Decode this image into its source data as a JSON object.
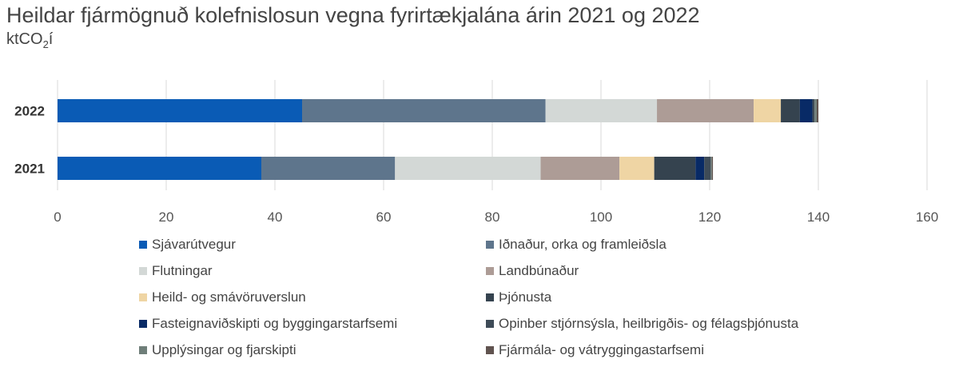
{
  "title": "Heildar fjármögnuð kolefnislosun vegna fyrirtækjalána árin 2021 og 2022",
  "subtitle": {
    "unit_main": "ktCO",
    "unit_sub": "2",
    "unit_tail": "í"
  },
  "chart_data": {
    "type": "bar",
    "orientation": "horizontal",
    "stacked": true,
    "categories": [
      "2022",
      "2021"
    ],
    "xlim": [
      0,
      160
    ],
    "xticks": [
      0,
      20,
      40,
      60,
      80,
      100,
      120,
      140,
      160
    ],
    "grid": true,
    "legend_position": "bottom",
    "series": [
      {
        "name": "Sjávarútvegur",
        "color": "#0a5bb5",
        "values": [
          45.0,
          37.5
        ]
      },
      {
        "name": "Iðnaður, orka og framleiðsla",
        "color": "#5e758c",
        "values": [
          44.8,
          24.6
        ]
      },
      {
        "name": "Flutningar",
        "color": "#d3d8d6",
        "values": [
          20.5,
          26.8
        ]
      },
      {
        "name": "Landbúnaður",
        "color": "#ad9c96",
        "values": [
          17.8,
          14.5
        ]
      },
      {
        "name": "Heild- og smávöruverslun",
        "color": "#efd5a4",
        "values": [
          5.0,
          6.4
        ]
      },
      {
        "name": "Þjónusta",
        "color": "#35434f",
        "values": [
          3.5,
          7.6
        ]
      },
      {
        "name": "Fasteignaviðskipti og byggingarstarfsemi",
        "color": "#082a66",
        "values": [
          2.3,
          1.6
        ]
      },
      {
        "name": "Opinber stjórnsýsla, heilbrigðis- og félagsþjónusta",
        "color": "#3e4b57",
        "values": [
          0.4,
          1.2
        ]
      },
      {
        "name": "Upplýsingar og fjarskipti",
        "color": "#6f7e79",
        "values": [
          0.4,
          0.2
        ]
      },
      {
        "name": "Fjármála- og vátryggingastarfsemi",
        "color": "#60534f",
        "values": [
          0.3,
          0.2
        ]
      }
    ]
  }
}
